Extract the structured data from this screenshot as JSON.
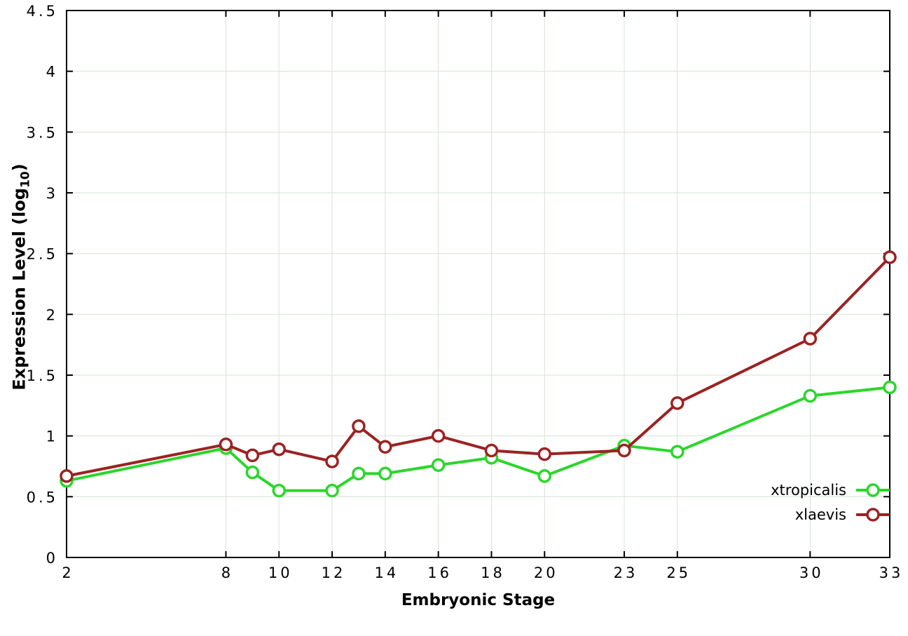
{
  "chart_data": {
    "type": "line",
    "title": "",
    "xlabel": "Embryonic Stage",
    "ylabel": "Expression Level (log10)",
    "ylabel_parts": {
      "prefix": "Expression Level (log",
      "subscript": "10",
      "suffix": ")"
    },
    "xlim": [
      2,
      33
    ],
    "ylim": [
      0,
      4.5
    ],
    "x": [
      2,
      8,
      9,
      10,
      12,
      13,
      14,
      16,
      18,
      20,
      23,
      25,
      30,
      33
    ],
    "xticks": [
      2,
      8,
      10,
      12,
      14,
      16,
      18,
      20,
      23,
      25,
      30,
      33
    ],
    "xtick_labels": [
      "2",
      "8",
      "10",
      "12",
      "14",
      "16",
      "18",
      "20",
      "23",
      "25",
      "30",
      "33"
    ],
    "yticks": [
      0,
      0.5,
      1,
      1.5,
      2,
      2.5,
      3,
      3.5,
      4,
      4.5
    ],
    "ytick_labels": [
      "0",
      "0.5",
      "1",
      "1.5",
      "2",
      "2.5",
      "3",
      "3.5",
      "4",
      "4.5"
    ],
    "grid": true,
    "grid_color": "#d6e3d6",
    "axis_color": "#000000",
    "series": [
      {
        "name": "xtropicalis",
        "color": "#2bd62b",
        "values": [
          0.63,
          0.9,
          0.7,
          0.55,
          0.55,
          0.69,
          0.69,
          0.76,
          0.82,
          0.67,
          0.92,
          0.87,
          1.33,
          1.4
        ]
      },
      {
        "name": "xlaevis",
        "color": "#9c2222",
        "values": [
          0.67,
          0.93,
          0.84,
          0.89,
          0.79,
          1.08,
          0.91,
          1.0,
          0.88,
          0.85,
          0.88,
          1.27,
          1.8,
          2.47
        ]
      }
    ],
    "legend": {
      "position": "inside-bottom-right"
    }
  }
}
